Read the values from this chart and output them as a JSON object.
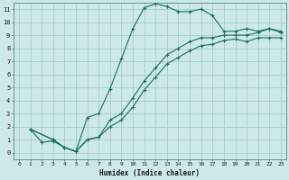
{
  "xlabel": "Humidex (Indice chaleur)",
  "ylabel": "",
  "bg_color": "#cce8e8",
  "grid_color": "#aacccc",
  "line_color": "#1a7060",
  "xlim": [
    -0.5,
    23.5
  ],
  "ylim": [
    -0.5,
    11.5
  ],
  "xticks": [
    0,
    1,
    2,
    3,
    4,
    5,
    6,
    7,
    8,
    9,
    10,
    11,
    12,
    13,
    14,
    15,
    16,
    17,
    18,
    19,
    20,
    21,
    22,
    23
  ],
  "yticks": [
    0,
    1,
    2,
    3,
    4,
    5,
    6,
    7,
    8,
    9,
    10,
    11
  ],
  "line1_x": [
    1,
    2,
    3,
    4,
    5,
    6,
    7,
    8,
    9,
    10,
    11,
    12,
    13,
    14,
    15,
    16,
    17,
    18,
    19,
    20,
    21,
    22,
    23
  ],
  "line1_y": [
    1.8,
    0.8,
    0.9,
    0.4,
    0.1,
    2.7,
    3.0,
    4.9,
    7.2,
    9.5,
    11.1,
    11.4,
    11.2,
    10.8,
    10.8,
    11.0,
    10.5,
    9.3,
    9.3,
    9.5,
    9.3,
    9.5,
    9.3
  ],
  "line2_x": [
    1,
    3,
    4,
    5,
    6,
    7,
    8,
    9,
    10,
    11,
    12,
    13,
    14,
    15,
    16,
    17,
    18,
    19,
    20,
    21,
    22,
    23
  ],
  "line2_y": [
    1.8,
    1.0,
    0.4,
    0.1,
    1.0,
    1.2,
    2.5,
    3.0,
    4.2,
    5.5,
    6.5,
    7.5,
    8.0,
    8.5,
    8.8,
    8.8,
    9.0,
    9.0,
    9.0,
    9.2,
    9.5,
    9.2
  ],
  "line3_x": [
    1,
    3,
    4,
    5,
    6,
    7,
    8,
    9,
    10,
    11,
    12,
    13,
    14,
    15,
    16,
    17,
    18,
    19,
    20,
    21,
    22,
    23
  ],
  "line3_y": [
    1.8,
    1.0,
    0.4,
    0.1,
    1.0,
    1.2,
    2.0,
    2.5,
    3.5,
    4.8,
    5.8,
    6.8,
    7.3,
    7.8,
    8.2,
    8.3,
    8.6,
    8.7,
    8.5,
    8.8,
    8.8,
    8.8
  ]
}
